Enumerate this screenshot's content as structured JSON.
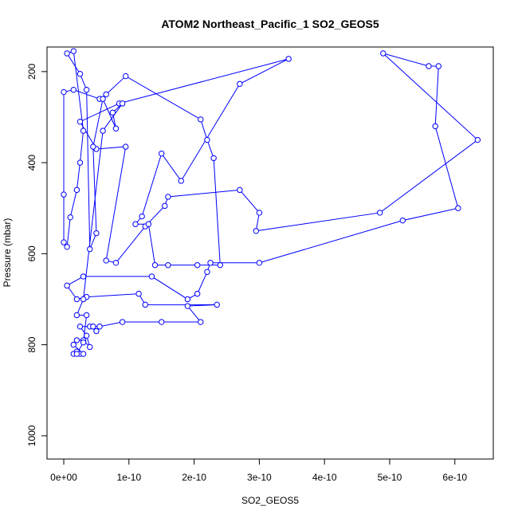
{
  "chart_data": {
    "type": "line",
    "title": "ATOM2 Northeast_Pacific_1 SO2_GEOS5",
    "xlabel": "SO2_GEOS5",
    "ylabel": "Pressure (mbar)",
    "xlim": [
      -2.57e-11,
      6.59e-10
    ],
    "ylim": [
      1051,
      146
    ],
    "xticks": [
      {
        "value": 0,
        "label": "0e+00"
      },
      {
        "value": 1e-10,
        "label": "1e-10"
      },
      {
        "value": 2e-10,
        "label": "2e-10"
      },
      {
        "value": 3e-10,
        "label": "3e-10"
      },
      {
        "value": 4e-10,
        "label": "4e-10"
      },
      {
        "value": 5e-10,
        "label": "5e-10"
      },
      {
        "value": 6e-10,
        "label": "6e-10"
      }
    ],
    "yticks": [
      200,
      400,
      600,
      800,
      1000
    ],
    "x": [
      1.5e-11,
      2e-11,
      2.5e-11,
      3e-11,
      1.5e-11,
      2e-11,
      3e-11,
      4e-11,
      3.5e-11,
      2.5e-11,
      4e-11,
      5e-11,
      4.5e-11,
      5.5e-11,
      9e-11,
      1.5e-10,
      2.1e-10,
      1.9e-10,
      2.35e-10,
      1.25e-10,
      1.15e-10,
      3.5e-11,
      2e-11,
      5e-12,
      3e-11,
      1.35e-10,
      1.9e-10,
      2.05e-10,
      2.2e-10,
      2.25e-10,
      3e-10,
      5.2e-10,
      6.05e-10,
      5.7e-10,
      5.75e-10,
      5.6e-10,
      4.9e-10,
      6.35e-10,
      4.85e-10,
      2.95e-10,
      3e-10,
      2.7e-10,
      1.6e-10,
      1.55e-10,
      1.25e-10,
      8e-11,
      6.5e-11,
      9.5e-11,
      5e-11,
      2.5e-11,
      8.5e-11,
      3.45e-10,
      2.7e-10,
      1.8e-10,
      1.5e-10,
      1.2e-10,
      1.1e-10,
      1.3e-10,
      1.4e-10,
      1.6e-10,
      2.05e-10,
      2.4e-10,
      2.3e-10,
      2.2e-10,
      2.1e-10,
      9.5e-11,
      6.5e-11,
      5.5e-11,
      1.5e-11,
      0,
      0,
      0,
      5e-12,
      1e-11,
      2e-11,
      2.5e-11,
      3e-11,
      1.5e-11,
      5e-12,
      2.5e-11,
      3.5e-11,
      4e-11,
      5e-11,
      4.5e-11,
      6e-11,
      8e-11,
      7.5e-11,
      9e-11,
      6e-11,
      3e-11,
      2e-11,
      3.5e-11,
      3e-11,
      2e-11
    ],
    "series": [
      {
        "color": "#0000ff",
        "values": [
          820,
          815,
          820,
          820,
          800,
          790,
          790,
          805,
          780,
          760,
          760,
          770,
          760,
          760,
          750,
          750,
          750,
          715,
          712,
          712,
          688,
          695,
          700,
          670,
          650,
          650,
          700,
          688,
          640,
          620,
          620,
          527,
          500,
          320,
          188,
          188,
          160,
          350,
          510,
          550,
          510,
          460,
          475,
          495,
          540,
          620,
          615,
          365,
          370,
          310,
          270,
          172,
          227,
          440,
          380,
          518,
          535,
          535,
          625,
          625,
          625,
          625,
          390,
          350,
          305,
          210,
          250,
          260,
          240,
          245,
          470,
          575,
          585,
          520,
          460,
          400,
          330,
          155,
          160,
          205,
          240,
          590,
          555,
          365,
          260,
          325,
          290,
          270,
          330,
          700,
          735,
          735,
          795,
          820
        ]
      }
    ]
  }
}
